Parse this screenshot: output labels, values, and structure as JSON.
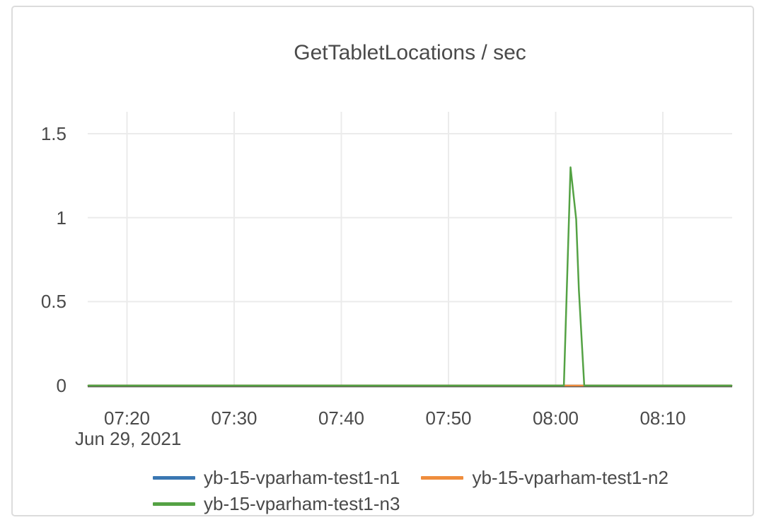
{
  "colors": {
    "grid": "#ebebeb",
    "zeroline": "#444444",
    "text": "#4a4a4a",
    "card_border": "#dcdcdc",
    "series_blue": "#3a77b2",
    "series_orange": "#ef8d3d",
    "series_green": "#54a244"
  },
  "chart_data": {
    "type": "line",
    "title": "GetTabletLocations / sec",
    "legend_position": "bottom",
    "grid": true,
    "x_axis": {
      "date_label": "Jun 29, 2021",
      "ticks": [
        "07:20",
        "07:30",
        "07:40",
        "07:50",
        "08:00",
        "08:10"
      ],
      "range": [
        "07:16:24",
        "08:16:24"
      ]
    },
    "y_axis": {
      "ticks": [
        "0",
        "0.5",
        "1",
        "1.5"
      ],
      "range": [
        0,
        1.63
      ]
    },
    "series": [
      {
        "name": "yb-15-vparham-test1-n1",
        "color": "#3a77b2",
        "points": [
          [
            "07:16:24",
            0
          ],
          [
            "08:16:24",
            0
          ]
        ]
      },
      {
        "name": "yb-15-vparham-test1-n2",
        "color": "#ef8d3d",
        "points": [
          [
            "07:16:24",
            0
          ],
          [
            "08:16:24",
            0
          ]
        ]
      },
      {
        "name": "yb-15-vparham-test1-n3",
        "color": "#54a244",
        "points": [
          [
            "07:16:24",
            0
          ],
          [
            "08:00:46",
            0
          ],
          [
            "08:01:23",
            1.3
          ],
          [
            "08:01:55",
            0.99
          ],
          [
            "08:02:10",
            0.57
          ],
          [
            "08:02:40",
            0
          ],
          [
            "08:16:24",
            0
          ]
        ]
      }
    ]
  }
}
